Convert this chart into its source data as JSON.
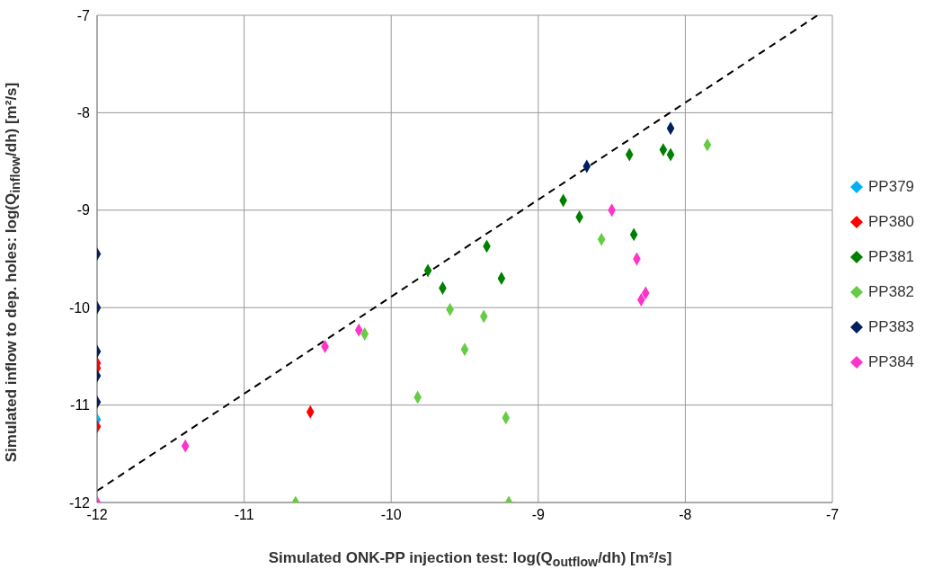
{
  "chart_data": {
    "type": "scatter",
    "xlabel": "Simulated ONK-PP injection test: log(Q$_{outflow}$/dh) [m²/s]",
    "ylabel": "Simulated inflow to dep. holes: log(Q$_{inflow}$/dh) [m²/s]",
    "xlim": [
      -12,
      -7
    ],
    "xticks": [
      -12,
      -11,
      -10,
      -9,
      -8,
      -7
    ],
    "ylim": [
      -12,
      -7
    ],
    "yticks": [
      -12,
      -11,
      -10,
      -9,
      -8,
      -7
    ],
    "grid": true,
    "legend": "right",
    "marker": "diamond",
    "series": [
      {
        "name": "PP379",
        "color": "#00b0f0",
        "x": [
          -12
        ],
        "values": [
          -11.15
        ]
      },
      {
        "name": "PP380",
        "color": "#ff0000",
        "x": [
          -12,
          -12,
          -12,
          -10.55
        ],
        "values": [
          -10.57,
          -10.62,
          -11.22,
          -11.07
        ]
      },
      {
        "name": "PP381",
        "color": "#008000",
        "x": [
          -9.75,
          -9.65,
          -9.35,
          -9.25,
          -8.83,
          -8.72,
          -8.38,
          -8.35,
          -8.15,
          -8.1
        ],
        "values": [
          -9.62,
          -9.8,
          -9.37,
          -9.7,
          -8.9,
          -9.07,
          -8.43,
          -9.25,
          -8.38,
          -8.43
        ]
      },
      {
        "name": "PP382",
        "color": "#66cc44",
        "x": [
          -7.85,
          -8.57,
          -9.6,
          -9.37,
          -9.5,
          -10.18,
          -9.82,
          -9.22,
          -10.65,
          -9.2
        ],
        "values": [
          -8.33,
          -9.3,
          -10.02,
          -10.09,
          -10.43,
          -10.27,
          -10.92,
          -11.13,
          -12,
          -12
        ]
      },
      {
        "name": "PP383",
        "color": "#002060",
        "x": [
          -12,
          -12,
          -12,
          -12,
          -12,
          -8.67,
          -8.1
        ],
        "values": [
          -9.45,
          -10,
          -10.45,
          -10.7,
          -10.97,
          -8.55,
          -8.16
        ]
      },
      {
        "name": "PP384",
        "color": "#ff33cc",
        "x": [
          -12,
          -11.4,
          -10.45,
          -10.22,
          -8.5,
          -8.33,
          -8.3,
          -8.27
        ],
        "values": [
          -12,
          -11.42,
          -10.4,
          -10.23,
          -9,
          -9.5,
          -9.92,
          -9.85
        ]
      },
      {
        "type": "line",
        "color": "#000000",
        "line_style": "dashed",
        "marker": "none",
        "x": [
          -12,
          -7.1
        ],
        "values": [
          -11.88,
          -7
        ]
      }
    ]
  }
}
